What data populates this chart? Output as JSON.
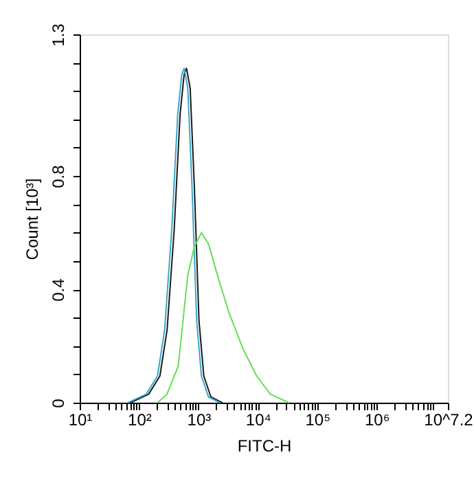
{
  "chart_data": {
    "type": "line",
    "xlabel": "FITC-H",
    "ylabel": "Count [10³]",
    "log": "x",
    "grid": false,
    "legend": false,
    "marker": "none",
    "line_style": "solid",
    "xlim": [
      10,
      15848931.92
    ],
    "ylim": [
      0,
      1.3
    ],
    "xticks": [
      {
        "value": 10,
        "label": "10¹"
      },
      {
        "value": 100,
        "label": "10²"
      },
      {
        "value": 1000,
        "label": "10³"
      },
      {
        "value": 10000,
        "label": "10⁴"
      },
      {
        "value": 100000,
        "label": "10⁵"
      },
      {
        "value": 1000000,
        "label": "10⁶"
      },
      {
        "value": 15848931.92,
        "label": "10^7.2"
      },
      {
        "value": 20,
        "label": null
      },
      {
        "value": 30,
        "label": null
      },
      {
        "value": 40,
        "label": null
      },
      {
        "value": 50,
        "label": null
      },
      {
        "value": 60,
        "label": null
      },
      {
        "value": 70,
        "label": null
      },
      {
        "value": 80,
        "label": null
      },
      {
        "value": 90,
        "label": null
      },
      {
        "value": 200,
        "label": null
      },
      {
        "value": 300,
        "label": null
      },
      {
        "value": 400,
        "label": null
      },
      {
        "value": 500,
        "label": null
      },
      {
        "value": 600,
        "label": null
      },
      {
        "value": 700,
        "label": null
      },
      {
        "value": 800,
        "label": null
      },
      {
        "value": 900,
        "label": null
      },
      {
        "value": 2000,
        "label": null
      },
      {
        "value": 3000,
        "label": null
      },
      {
        "value": 4000,
        "label": null
      },
      {
        "value": 5000,
        "label": null
      },
      {
        "value": 6000,
        "label": null
      },
      {
        "value": 7000,
        "label": null
      },
      {
        "value": 8000,
        "label": null
      },
      {
        "value": 9000,
        "label": null
      },
      {
        "value": 20000,
        "label": null
      },
      {
        "value": 30000,
        "label": null
      },
      {
        "value": 40000,
        "label": null
      },
      {
        "value": 50000,
        "label": null
      },
      {
        "value": 60000,
        "label": null
      },
      {
        "value": 70000,
        "label": null
      },
      {
        "value": 80000,
        "label": null
      },
      {
        "value": 90000,
        "label": null
      },
      {
        "value": 200000,
        "label": null
      },
      {
        "value": 300000,
        "label": null
      },
      {
        "value": 400000,
        "label": null
      },
      {
        "value": 500000,
        "label": null
      },
      {
        "value": 600000,
        "label": null
      },
      {
        "value": 700000,
        "label": null
      },
      {
        "value": 800000,
        "label": null
      },
      {
        "value": 900000,
        "label": null
      },
      {
        "value": 2000000,
        "label": null
      },
      {
        "value": 3000000,
        "label": null
      },
      {
        "value": 4000000,
        "label": null
      },
      {
        "value": 5000000,
        "label": null
      },
      {
        "value": 6000000,
        "label": null
      },
      {
        "value": 7000000,
        "label": null
      },
      {
        "value": 8000000,
        "label": null
      },
      {
        "value": 9000000,
        "label": null
      }
    ],
    "yticks": [
      0,
      0.4,
      0.8,
      1.3,
      {
        "value": 0.1,
        "label": null
      },
      {
        "value": 0.2,
        "label": null
      },
      {
        "value": 0.3,
        "label": null
      },
      {
        "value": 0.5,
        "label": null
      },
      {
        "value": 0.6,
        "label": null
      },
      {
        "value": 0.7,
        "label": null
      },
      {
        "value": 0.9,
        "label": null
      },
      {
        "value": 1.0,
        "label": null
      },
      {
        "value": 1.1,
        "label": null
      },
      {
        "value": 1.2,
        "label": null
      }
    ],
    "series": [
      {
        "color": "#1a1a1a",
        "x": [
          72,
          145,
          224,
          296,
          390,
          490,
          575,
          630,
          725,
          850,
          1020,
          1230,
          1620,
          2500
        ],
        "values": [
          0,
          0.03,
          0.094,
          0.256,
          0.61,
          1.017,
          1.16,
          1.18,
          1.11,
          0.77,
          0.29,
          0.094,
          0.02,
          0
        ]
      },
      {
        "color": "#3aa6c8",
        "x": [
          65,
          132,
          204,
          269,
          355,
          447,
          525,
          575,
          661,
          776,
          933,
          1122,
          1479,
          2291
        ],
        "values": [
          0,
          0.03,
          0.094,
          0.256,
          0.61,
          1.017,
          1.16,
          1.18,
          1.11,
          0.77,
          0.29,
          0.094,
          0.02,
          0
        ]
      },
      {
        "color": "#66dd55",
        "x": [
          204,
          295,
          457,
          661,
          851,
          1122,
          1479,
          2089,
          3236,
          5623,
          9550,
          16218,
          33113
        ],
        "values": [
          0,
          0.03,
          0.13,
          0.45,
          0.55,
          0.6,
          0.56,
          0.45,
          0.32,
          0.19,
          0.094,
          0.03,
          0
        ]
      }
    ]
  }
}
